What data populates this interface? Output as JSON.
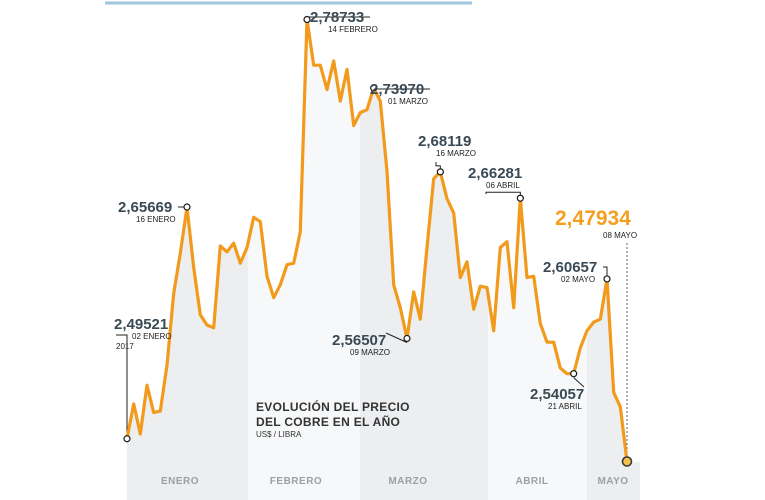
{
  "chart_data": {
    "type": "line",
    "title": "EVOLUCIÓN DEL PRECIO DEL COBRE EN EL AÑO",
    "title_lines": [
      "EVOLUCIÓN DEL PRECIO",
      "DEL COBRE EN EL AÑO"
    ],
    "unit": "US$ / LIBRA",
    "months": [
      "ENERO",
      "FEBRERO",
      "MARZO",
      "ABRIL",
      "MAYO"
    ],
    "line_color": "#f29a1b",
    "highlight_color": "#f3a021",
    "series": [
      {
        "values": [
          2.49521,
          2.5195,
          2.4985,
          2.5325,
          2.5135,
          2.5145,
          2.5465,
          2.5965,
          2.6245,
          2.65669,
          2.6145,
          2.5815,
          2.5745,
          2.5725,
          2.6295,
          2.6255,
          2.6315,
          2.6175,
          2.6285,
          2.6495,
          2.6465,
          2.6085,
          2.5935,
          2.6025,
          2.6165,
          2.6175,
          2.6395,
          2.78733,
          2.7555,
          2.7555,
          2.7385,
          2.7585,
          2.7305,
          2.7525,
          2.7135,
          2.7225,
          2.7245,
          2.7397,
          2.7305,
          2.6815,
          2.6025,
          2.5865,
          2.56507,
          2.5975,
          2.5785,
          2.6285,
          2.6765,
          2.68119,
          2.6625,
          2.6525,
          2.6075,
          2.6185,
          2.5855,
          2.6015,
          2.6005,
          2.5705,
          2.6285,
          2.6325,
          2.5865,
          2.66281,
          2.6075,
          2.6085,
          2.5755,
          2.5625,
          2.5625,
          2.5445,
          2.5405,
          2.54057,
          2.5585,
          2.5705,
          2.5765,
          2.5785,
          2.60657,
          2.5275,
          2.5175,
          2.47934
        ]
      }
    ],
    "annotations": [
      {
        "value": "2,49521",
        "date": "02 ENERO",
        "date2": "2017"
      },
      {
        "value": "2,65669",
        "date": "16 ENERO"
      },
      {
        "value": "2,78733",
        "date": "14 FEBRERO"
      },
      {
        "value": "2,73970",
        "date": "01 MARZO"
      },
      {
        "value": "2,56507",
        "date": "09 MARZO"
      },
      {
        "value": "2,68119",
        "date": "16 MARZO"
      },
      {
        "value": "2,66281",
        "date": "06 ABRIL"
      },
      {
        "value": "2,54057",
        "date": "21 ABRIL"
      },
      {
        "value": "2,60657",
        "date": "02 MAYO"
      },
      {
        "value": "2,47934",
        "date": "08 MAYO"
      }
    ]
  }
}
